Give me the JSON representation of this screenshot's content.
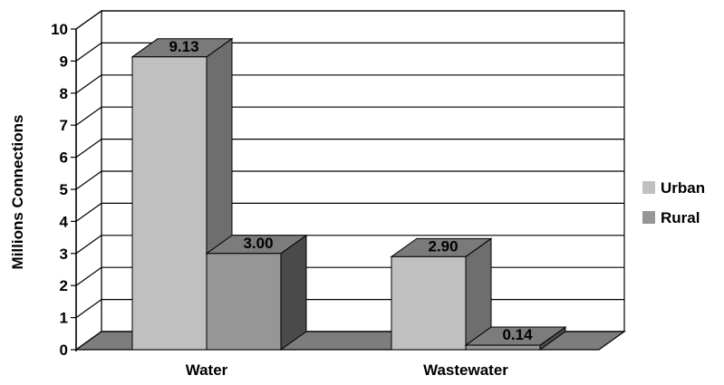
{
  "chart_data": {
    "type": "bar",
    "title": "",
    "xlabel": "",
    "ylabel": "Millions Connections",
    "ylim": [
      0,
      10
    ],
    "yticks": [
      "0",
      "1",
      "2",
      "3",
      "4",
      "5",
      "6",
      "7",
      "8",
      "9",
      "10"
    ],
    "categories": [
      "Water",
      "Wastewater"
    ],
    "series": [
      {
        "name": "Urban",
        "values": [
          9.13,
          2.9
        ],
        "labels": [
          "9.13",
          "2.90"
        ]
      },
      {
        "name": "Rural",
        "values": [
          3.0,
          0.14
        ],
        "labels": [
          "3.00",
          "0.14"
        ]
      }
    ],
    "grid": true,
    "legend_position": "right",
    "style": "3d-column",
    "colors": {
      "urban_front": "#c0c0c0",
      "urban_side": "#6e6e6e",
      "urban_top": "#7a7a7a",
      "rural_front": "#969696",
      "rural_side": "#4a4a4a",
      "rural_top": "#7c7c7c",
      "floor": "#7d7d7d"
    }
  }
}
